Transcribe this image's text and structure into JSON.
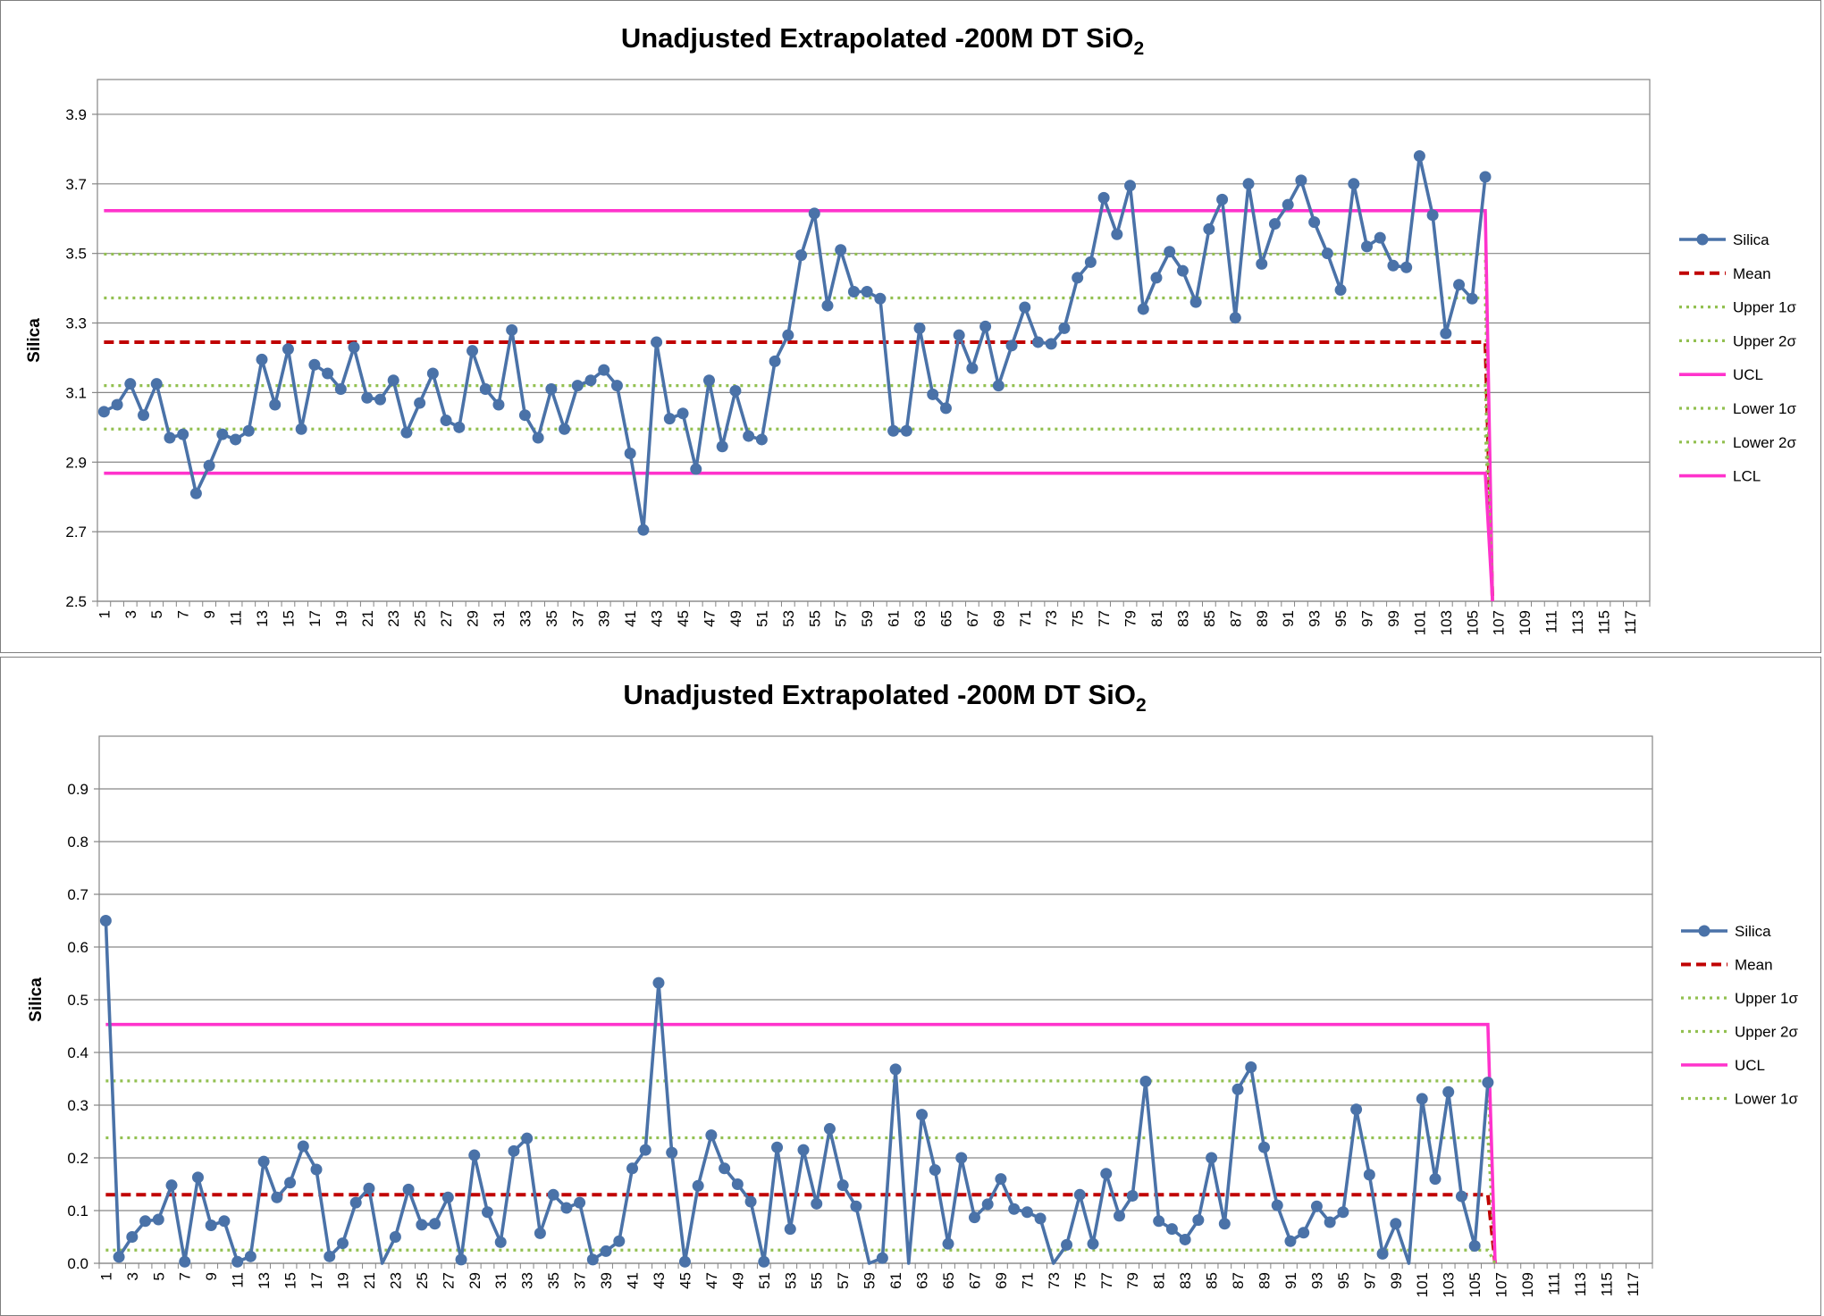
{
  "chart_data": [
    {
      "type": "line",
      "title": "Unadjusted Extrapolated -200M DT SiO",
      "title_subscript": "2",
      "ylabel": "Silica",
      "xlabel": "",
      "ylim": [
        2.5,
        3.9
      ],
      "ymax_plot": 4.0,
      "ytick_values": [
        2.5,
        2.7,
        2.9,
        3.1,
        3.3,
        3.5,
        3.7,
        3.9
      ],
      "ytick_labels": [
        "2.5",
        "2.7",
        "2.9",
        "3.1",
        "3.3",
        "3.5",
        "3.7",
        "3.9"
      ],
      "x_categories": 118,
      "xtick_labels": [
        "1",
        "3",
        "5",
        "7",
        "9",
        "11",
        "13",
        "15",
        "17",
        "19",
        "21",
        "23",
        "25",
        "27",
        "29",
        "31",
        "33",
        "35",
        "37",
        "39",
        "41",
        "43",
        "45",
        "47",
        "49",
        "51",
        "53",
        "55",
        "57",
        "59",
        "61",
        "63",
        "65",
        "67",
        "69",
        "71",
        "73",
        "75",
        "77",
        "79",
        "81",
        "83",
        "85",
        "87",
        "89",
        "91",
        "93",
        "95",
        "97",
        "99",
        "101",
        "103",
        "105",
        "107",
        "109",
        "111",
        "113",
        "115",
        "117"
      ],
      "grid": "horizontal",
      "legend_position": "right",
      "colors": {
        "silica": "#4a72a8",
        "mean": "#c00000",
        "sigma": "#92c050",
        "limit": "#ff33cc"
      },
      "series": [
        {
          "name": "Silica",
          "style": "marker-line",
          "values": [
            3.045,
            3.065,
            3.125,
            3.035,
            3.125,
            2.97,
            2.98,
            2.81,
            2.89,
            2.98,
            2.965,
            2.99,
            3.195,
            3.065,
            3.225,
            2.995,
            3.18,
            3.155,
            3.11,
            3.23,
            3.085,
            3.08,
            3.135,
            2.985,
            3.07,
            3.155,
            3.02,
            3.0,
            3.22,
            3.11,
            3.065,
            3.28,
            3.035,
            2.97,
            3.11,
            2.995,
            3.12,
            3.135,
            3.165,
            3.12,
            2.925,
            2.705,
            3.245,
            3.025,
            3.04,
            2.88,
            3.135,
            2.945,
            3.105,
            2.975,
            2.965,
            3.19,
            3.265,
            3.495,
            3.615,
            3.35,
            3.51,
            3.39,
            3.39,
            3.37,
            2.99,
            2.99,
            3.285,
            3.095,
            3.055,
            3.265,
            3.17,
            3.29,
            3.12,
            3.235,
            3.345,
            3.245,
            3.24,
            3.285,
            3.43,
            3.475,
            3.66,
            3.555,
            3.695,
            3.34,
            3.43,
            3.505,
            3.45,
            3.36,
            3.57,
            3.655,
            3.315,
            3.7,
            3.47,
            3.585,
            3.64,
            3.71,
            3.59,
            3.5,
            3.395,
            3.7,
            3.52,
            3.545,
            3.465,
            3.46,
            3.78,
            3.61,
            3.27,
            3.41,
            3.37,
            3.72
          ]
        },
        {
          "name": "Mean",
          "style": "dashed",
          "value": 3.245
        },
        {
          "name": "Upper 1σ",
          "style": "dotted",
          "value": 3.372
        },
        {
          "name": "Upper 2σ",
          "style": "dotted",
          "value": 3.498
        },
        {
          "name": "UCL",
          "style": "solid",
          "value": 3.623
        },
        {
          "name": "Lower 1σ",
          "style": "dotted",
          "value": 3.12
        },
        {
          "name": "Lower 2σ",
          "style": "dotted",
          "value": 2.995
        },
        {
          "name": "LCL",
          "style": "solid",
          "value": 2.868
        }
      ],
      "limit_line_end_x": 106,
      "limit_line_drop_to": 2.5
    },
    {
      "type": "line",
      "title": "Unadjusted Extrapolated -200M DT SiO",
      "title_subscript": "2",
      "ylabel": "Silica",
      "xlabel": "",
      "ylim": [
        0.0,
        0.9
      ],
      "ymax_plot": 1.0,
      "ytick_values": [
        0.0,
        0.1,
        0.2,
        0.3,
        0.4,
        0.5,
        0.6,
        0.7,
        0.8,
        0.9
      ],
      "ytick_labels": [
        "0.0",
        "0.1",
        "0.2",
        "0.3",
        "0.4",
        "0.5",
        "0.6",
        "0.7",
        "0.8",
        "0.9"
      ],
      "x_categories": 118,
      "xtick_labels": [
        "1",
        "3",
        "5",
        "7",
        "9",
        "11",
        "13",
        "15",
        "17",
        "19",
        "21",
        "23",
        "25",
        "27",
        "29",
        "31",
        "33",
        "35",
        "37",
        "39",
        "41",
        "43",
        "45",
        "47",
        "49",
        "51",
        "53",
        "55",
        "57",
        "59",
        "61",
        "63",
        "65",
        "67",
        "69",
        "71",
        "73",
        "75",
        "77",
        "79",
        "81",
        "83",
        "85",
        "87",
        "89",
        "91",
        "93",
        "95",
        "97",
        "99",
        "101",
        "103",
        "105",
        "107",
        "109",
        "111",
        "113",
        "115",
        "117"
      ],
      "grid": "horizontal",
      "legend_position": "right",
      "colors": {
        "silica": "#4a72a8",
        "mean": "#c00000",
        "sigma": "#92c050",
        "limit": "#ff33cc"
      },
      "series": [
        {
          "name": "Silica",
          "style": "marker-line",
          "values": [
            0.65,
            0.012,
            0.05,
            0.08,
            0.083,
            0.148,
            0.003,
            0.163,
            0.072,
            0.08,
            0.003,
            0.013,
            0.193,
            0.125,
            0.153,
            0.222,
            0.178,
            0.013,
            0.038,
            0.115,
            0.142,
            -0.005,
            0.05,
            0.14,
            0.073,
            0.075,
            0.125,
            0.007,
            0.205,
            0.097,
            0.04,
            0.213,
            0.237,
            0.057,
            0.13,
            0.105,
            0.115,
            0.007,
            0.023,
            0.042,
            0.18,
            0.215,
            0.532,
            0.21,
            0.003,
            0.147,
            0.243,
            0.18,
            0.15,
            0.117,
            0.003,
            0.22,
            0.065,
            0.215,
            0.113,
            0.255,
            0.148,
            0.108,
            -0.012,
            0.01,
            0.368,
            -0.01,
            0.282,
            0.177,
            0.037,
            0.2,
            0.087,
            0.112,
            0.16,
            0.103,
            0.097,
            0.085,
            -0.005,
            0.035,
            0.13,
            0.037,
            0.17,
            0.09,
            0.128,
            0.345,
            0.08,
            0.065,
            0.045,
            0.082,
            0.2,
            0.075,
            0.33,
            0.372,
            0.22,
            0.11,
            0.042,
            0.058,
            0.108,
            0.078,
            0.097,
            0.292,
            0.168,
            0.018,
            0.075,
            -0.008,
            0.312,
            0.16,
            0.325,
            0.127,
            0.033,
            0.343
          ]
        },
        {
          "name": "Mean",
          "style": "dashed",
          "value": 0.13
        },
        {
          "name": "Upper 1σ",
          "style": "dotted",
          "value": 0.238
        },
        {
          "name": "Upper 2σ",
          "style": "dotted",
          "value": 0.346
        },
        {
          "name": "UCL",
          "style": "solid",
          "value": 0.453
        },
        {
          "name": "Lower 1σ",
          "style": "dotted",
          "value": 0.025
        }
      ],
      "limit_line_end_x": 106,
      "limit_line_drop_to": 0.0
    }
  ]
}
